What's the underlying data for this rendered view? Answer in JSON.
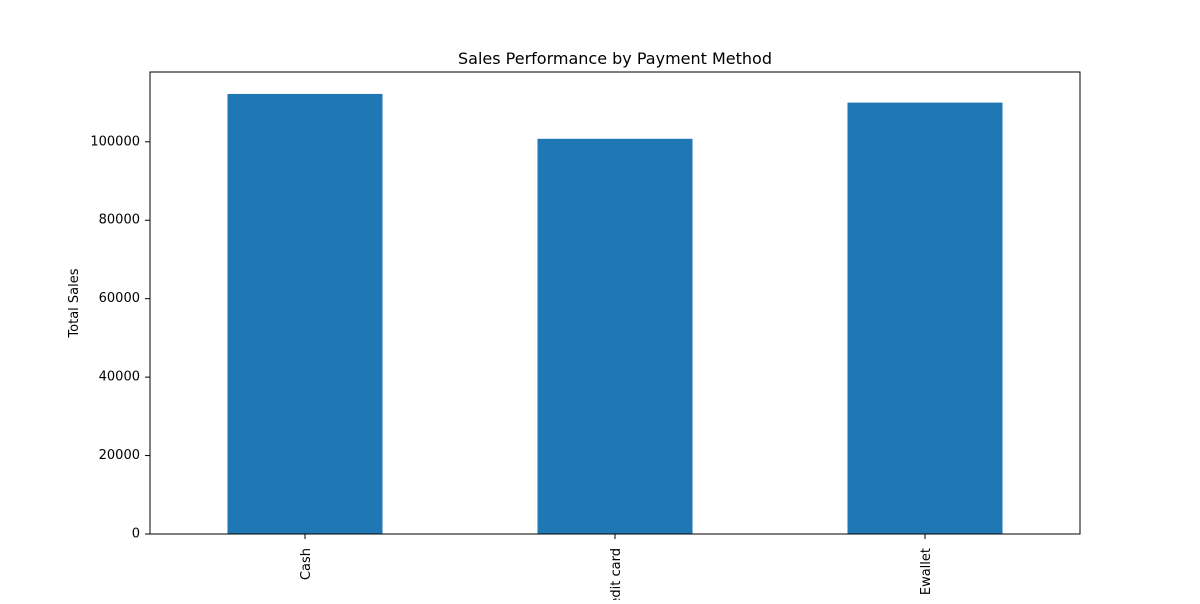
{
  "chart_data": {
    "type": "bar",
    "title": "Sales Performance by Payment Method",
    "xlabel": "",
    "ylabel": "Total Sales",
    "categories": [
      "Cash",
      "Credit card",
      "Ewallet"
    ],
    "values": [
      112207,
      100767,
      109993
    ],
    "ylim": [
      0,
      117800
    ],
    "yticks": [
      0,
      20000,
      40000,
      60000,
      80000,
      100000
    ],
    "grid": false,
    "legend": false,
    "colors": {
      "bar": "#1f77b4",
      "axis": "#000000",
      "background": "#ffffff"
    }
  }
}
